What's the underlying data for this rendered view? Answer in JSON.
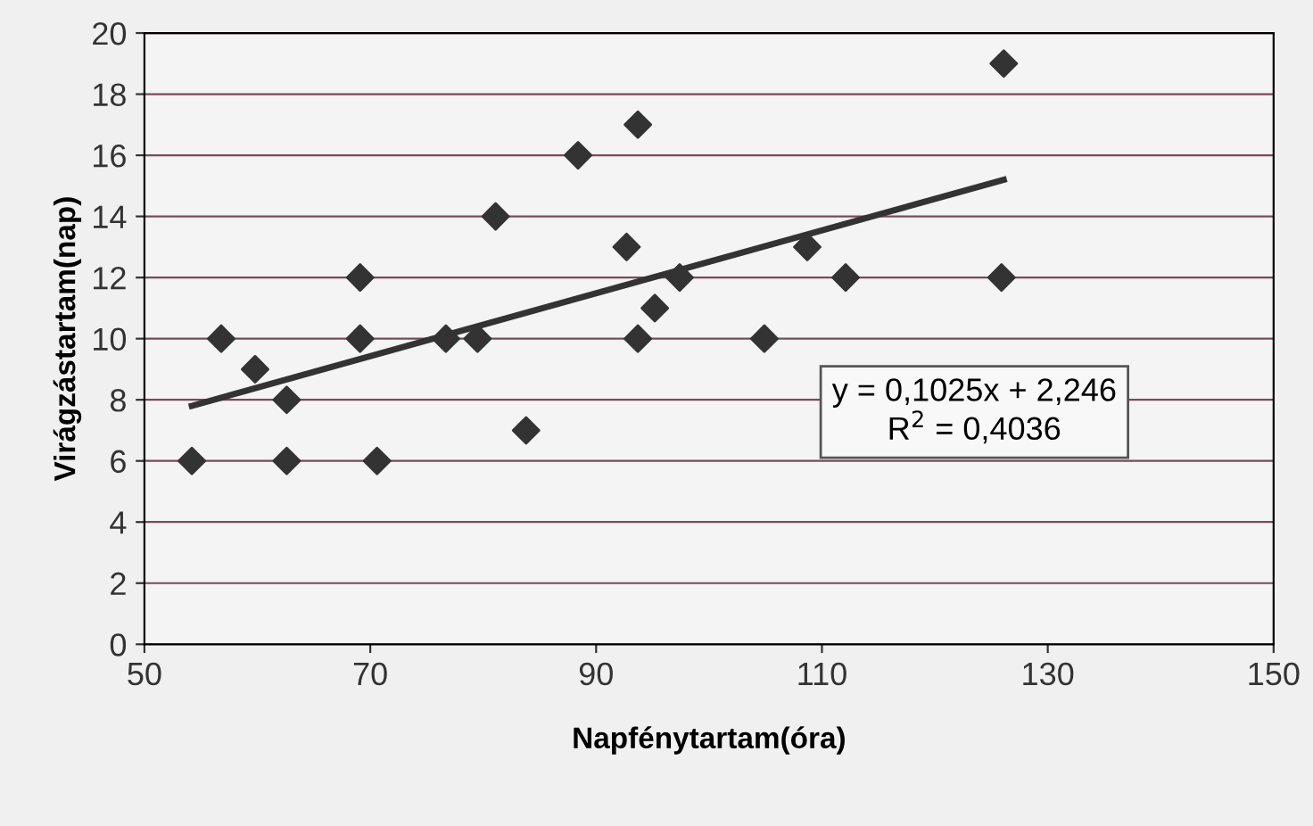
{
  "chart_data": {
    "type": "scatter",
    "xlabel": "Napfénytartam(óra)",
    "ylabel": "Virágzástartam(nap)",
    "series": [
      {
        "color": "#333333",
        "marker": "diamond",
        "x": [
          54.2,
          56.8,
          59.8,
          62.6,
          62.6,
          69.1,
          69.1,
          70.6,
          76.7,
          79.5,
          81.1,
          83.8,
          88.4,
          93.7,
          92.7,
          93.7,
          95.2,
          97.4,
          104.9,
          108.7,
          112.1,
          125.9,
          126.1
        ],
        "values": [
          6,
          10,
          9,
          8,
          6,
          12,
          10,
          6,
          10,
          10,
          14,
          7,
          16,
          17,
          13,
          10,
          11,
          12,
          10,
          13,
          12,
          12,
          19
        ]
      },
      {
        "type": "line",
        "color": "#333333",
        "marker": "none",
        "x": [
          54.2,
          126.1
        ],
        "values": [
          7.8,
          15.2
        ]
      }
    ],
    "annotations": [
      "y = 0,1025x + 2,246\nR$^{2}$ = 0,4036"
    ],
    "xlim": [
      50,
      150
    ],
    "xticks": [
      50,
      70,
      90,
      110,
      130,
      150
    ],
    "ylim": [
      0,
      20
    ],
    "yticks": [
      0,
      2,
      4,
      6,
      8,
      10,
      12,
      14,
      16,
      18,
      20
    ],
    "grid": "y"
  }
}
